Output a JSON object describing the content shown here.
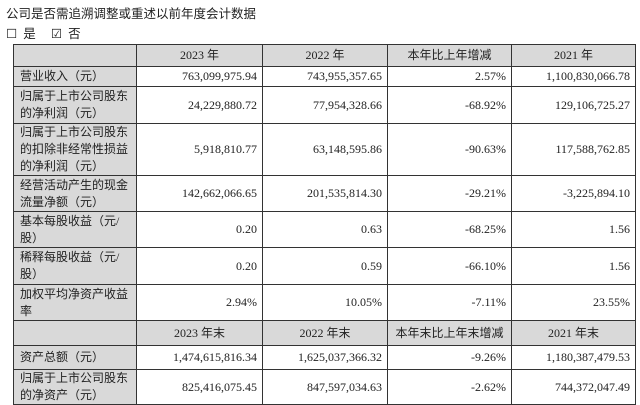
{
  "title": "公司是否需追溯调整或重述以前年度会计数据",
  "options": [
    {
      "label": "是",
      "checked": false
    },
    {
      "label": "否",
      "checked": true
    }
  ],
  "table1": {
    "headers": [
      "",
      "2023 年",
      "2022 年",
      "本年比上年增减",
      "2021 年"
    ],
    "rows": [
      {
        "label": "营业收入（元）",
        "values": [
          "763,099,975.94",
          "743,955,357.65",
          "2.57%",
          "1,100,830,066.78"
        ]
      },
      {
        "label": "归属于上市公司股东的净利润（元）",
        "values": [
          "24,229,880.72",
          "77,954,328.66",
          "-68.92%",
          "129,106,725.27"
        ]
      },
      {
        "label": "归属于上市公司股东的扣除非经常性损益的净利润（元）",
        "values": [
          "5,918,810.77",
          "63,148,595.86",
          "-90.63%",
          "117,588,762.85"
        ]
      },
      {
        "label": "经营活动产生的现金流量净额（元）",
        "values": [
          "142,662,066.65",
          "201,535,814.30",
          "-29.21%",
          "-3,225,894.10"
        ]
      },
      {
        "label": "基本每股收益（元/股）",
        "values": [
          "0.20",
          "0.63",
          "-68.25%",
          "1.56"
        ]
      },
      {
        "label": "稀释每股收益（元/股）",
        "values": [
          "0.20",
          "0.59",
          "-66.10%",
          "1.56"
        ]
      },
      {
        "label": "加权平均净资产收益率",
        "values": [
          "2.94%",
          "10.05%",
          "-7.11%",
          "23.55%"
        ]
      }
    ]
  },
  "table2": {
    "headers": [
      "",
      "2023 年末",
      "2022 年末",
      "本年末比上年末增减",
      "2021 年末"
    ],
    "rows": [
      {
        "label": "资产总额（元）",
        "values": [
          "1,474,615,816.34",
          "1,625,037,366.32",
          "-9.26%",
          "1,180,387,479.53"
        ]
      },
      {
        "label": "归属于上市公司股东的净资产（元）",
        "values": [
          "825,416,075.45",
          "847,597,034.63",
          "-2.62%",
          "744,372,047.49"
        ]
      }
    ]
  }
}
